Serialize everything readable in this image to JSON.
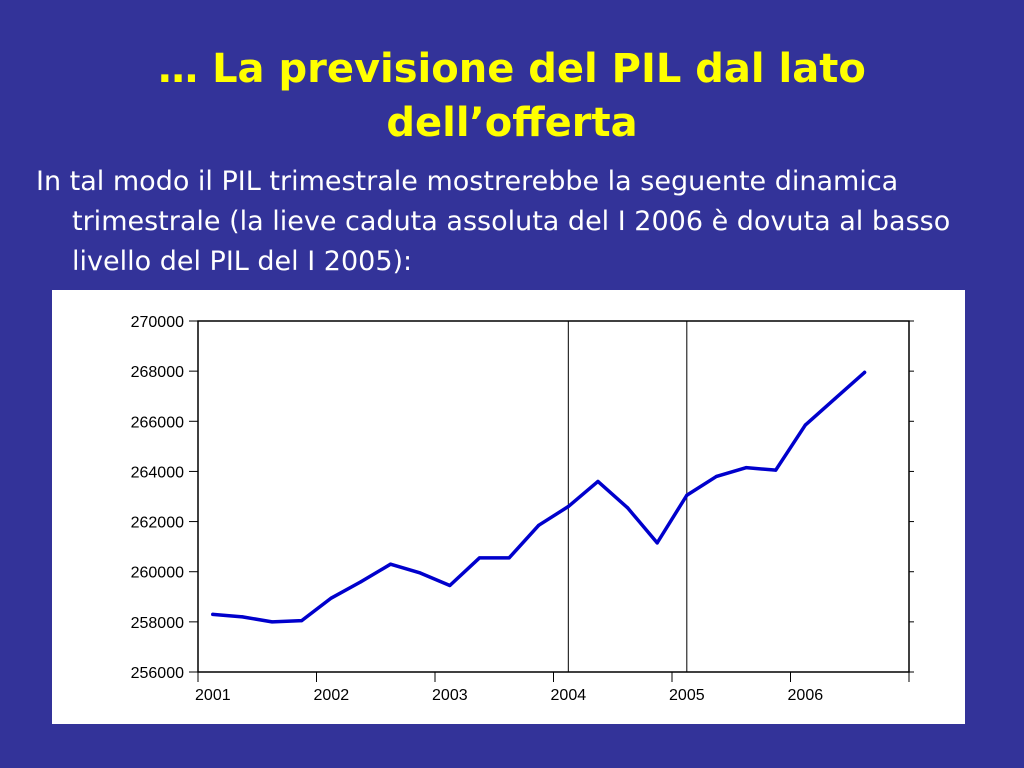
{
  "slide": {
    "title_line1": "… La previsione del PIL dal lato",
    "title_line2": "dell’offerta",
    "body": "In tal modo il PIL trimestrale mostrerebbe la seguente dinamica trimestrale (la lieve caduta assoluta del I 2006 è dovuta al basso livello del PIL del I 2005):"
  },
  "colors": {
    "background": "#333399",
    "title": "#ffff00",
    "text": "#ffffff",
    "series": "#0000cc"
  },
  "chart_data": {
    "type": "line",
    "title": "",
    "xlabel": "",
    "ylabel": "",
    "x_tick_labels": [
      "2001",
      "2002",
      "2003",
      "2004",
      "2005",
      "2006"
    ],
    "y_tick_labels": [
      "256000",
      "258000",
      "260000",
      "262000",
      "264000",
      "266000",
      "268000",
      "270000"
    ],
    "ylim": [
      256000,
      270000
    ],
    "quarters_per_year": 4,
    "vertical_lines_at_years": [
      "2004",
      "2005"
    ],
    "grid": false,
    "series": [
      {
        "values": [
          258300,
          258200,
          258000,
          258050,
          258950,
          259600,
          260300,
          259950,
          259450,
          260550,
          260550,
          261850,
          262600,
          263600,
          262550,
          261150,
          263050,
          263800,
          264150,
          264050,
          265850,
          266900,
          267950
        ]
      }
    ]
  }
}
